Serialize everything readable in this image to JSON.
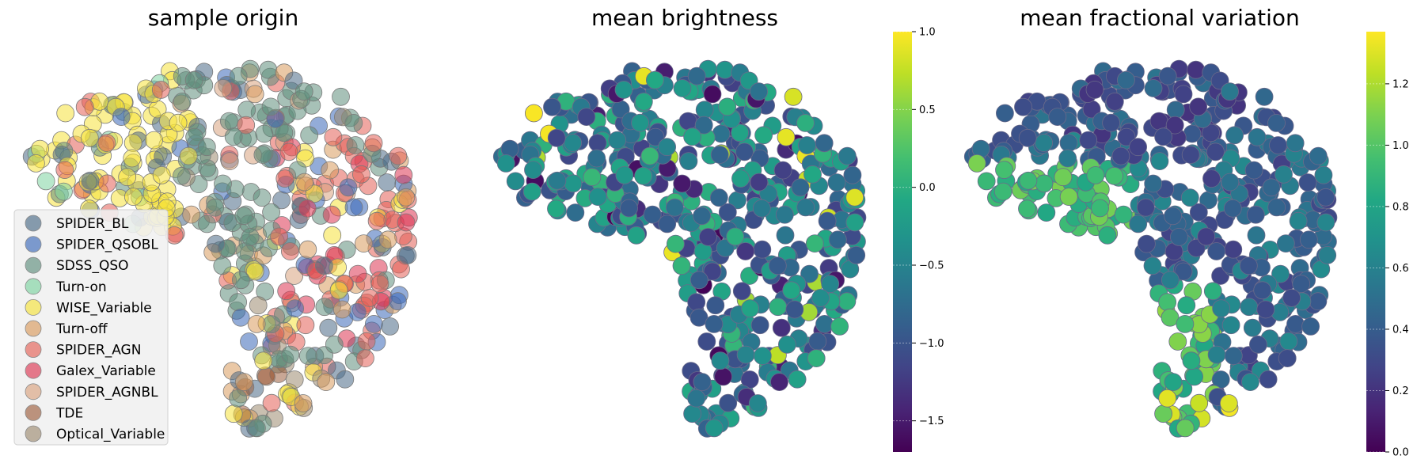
{
  "chart_data": [
    {
      "type": "scatter",
      "title": "sample origin",
      "xlabel": "",
      "ylabel": "",
      "axes_visible": false,
      "legend_position": "lower-left",
      "legend": [
        {
          "name": "SPIDER_BL",
          "color": "#4a6a86"
        },
        {
          "name": "SPIDER_QSOBL",
          "color": "#3a68b8"
        },
        {
          "name": "SDSS_QSO",
          "color": "#5e8e7c"
        },
        {
          "name": "Turn-on",
          "color": "#7dd3a0"
        },
        {
          "name": "WISE_Variable",
          "color": "#f5e23a"
        },
        {
          "name": "Turn-off",
          "color": "#d89a5c"
        },
        {
          "name": "SPIDER_AGN",
          "color": "#e45f55"
        },
        {
          "name": "Galex_Variable",
          "color": "#dc3552"
        },
        {
          "name": "SPIDER_AGNBL",
          "color": "#d8a27e"
        },
        {
          "name": "TDE",
          "color": "#9c5e3e"
        },
        {
          "name": "Optical_Variable",
          "color": "#9c8a70"
        }
      ],
      "marker_size_note": "uniform large circles, alpha ~0.55",
      "shape": "embedding cloud shared by all three panels"
    },
    {
      "type": "scatter",
      "title": "mean brightness",
      "axes_visible": false,
      "colormap": "viridis",
      "colorbar": {
        "min": -1.7,
        "max": 1.0,
        "ticks": [
          1.0,
          0.5,
          0.0,
          -0.5,
          -1.0,
          -1.5
        ],
        "tick_labels": [
          "1.0",
          "0.5",
          "0.0",
          "−0.5",
          "−1.0",
          "−1.5"
        ]
      }
    },
    {
      "type": "scatter",
      "title": "mean fractional variation",
      "axes_visible": false,
      "colormap": "viridis",
      "colorbar": {
        "min": 0.0,
        "max": 1.37,
        "ticks": [
          1.2,
          1.0,
          0.8,
          0.6,
          0.4,
          0.2,
          0.0
        ],
        "tick_labels": [
          "1.2",
          "1.0",
          "0.8",
          "0.6",
          "0.4",
          "0.2",
          "0.0"
        ]
      }
    }
  ]
}
